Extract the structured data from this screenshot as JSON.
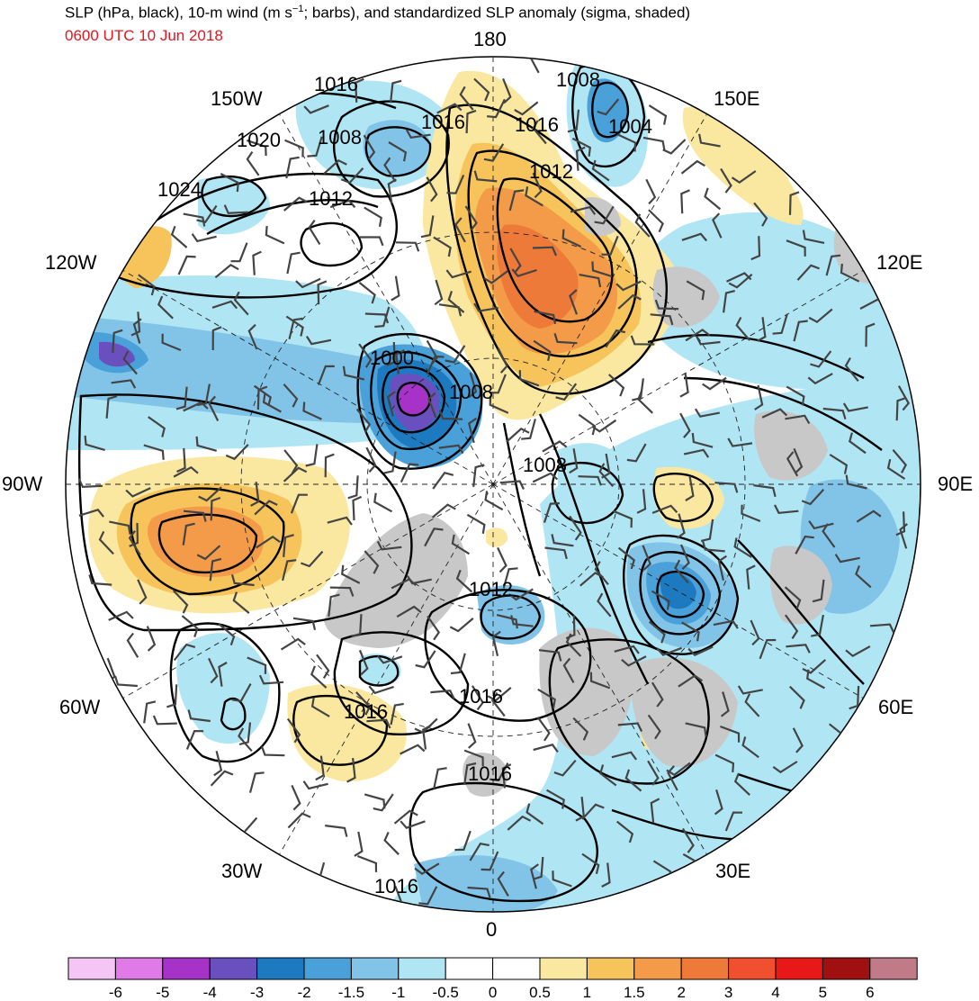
{
  "title": {
    "main_prefix": "SLP (hPa, black), 10-m wind (m s",
    "main_exp": "−1",
    "main_suffix": "; barbs), and standardized SLP anomaly (sigma, shaded)",
    "valid_time": "0600 UTC 10 Jun 2018",
    "valid_time_color": "#e8141e"
  },
  "longitude_labels": [
    "180",
    "150E",
    "120E",
    "90E",
    "60E",
    "30E",
    "0",
    "30W",
    "60W",
    "90W",
    "120W",
    "150W"
  ],
  "isobar_labels": [
    "1016",
    "1008",
    "1004",
    "1016",
    "1012",
    "1020",
    "1008",
    "1016",
    "1024",
    "1012",
    "1000",
    "1008",
    "1008",
    "1012",
    "1016",
    "1016",
    "1016",
    "1016"
  ],
  "colorbar": {
    "tick_labels": [
      "-6",
      "-5",
      "-4",
      "-3",
      "-2",
      "-1.5",
      "-1",
      "-0.5",
      "0",
      "0.5",
      "1",
      "1.5",
      "2",
      "3",
      "4",
      "5",
      "6"
    ],
    "colors": [
      "#f5c6f5",
      "#e07ae6",
      "#a632c8",
      "#6a50be",
      "#1e7ac0",
      "#4aa0d8",
      "#82c4e8",
      "#b0e6f4",
      "#ffffff",
      "#ffffff",
      "#fbe8a0",
      "#f6c45a",
      "#f39b48",
      "#ee7a3a",
      "#f05030",
      "#e81818",
      "#a01010",
      "#c07a88"
    ]
  }
}
